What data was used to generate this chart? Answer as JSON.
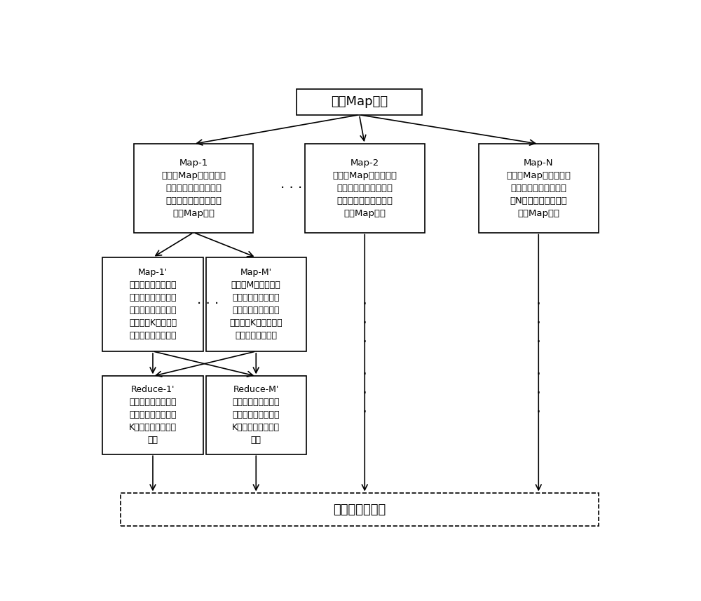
{
  "title": "启动Map任务",
  "map1_label": "Map-1\n获取该Map任务负责处\n理的待分类样本集中的\n第一部分样本，并启动\n新的Map任务",
  "map2_label": "Map-2\n获取该Map任务负责处\n理的待分类样本集中的\n第二部分样本，并启动\n新的Map任务",
  "mapn_label": "Map-N\n获取该Map任务负责处\n理的待分类样本集中的\n第N部分样本，并启动\n新的Map任务",
  "map1p_label": "Map-1'\n获取第一部分训练样\n本，并根据其对待分\n类样本集中的第一部\n分样本求K个最近邻\n相似度所对应的类别",
  "mapmp_label": "Map-M'\n获取第M部分训练样\n本，并根据其对待分\n类样本集中的第一部\n分样本求K个最近邻相\n似度所对应的类别",
  "reduce1p_label": "Reduce-1'\n统计第一部分待分类\n样本中的每个样本的\nK个类别中占多数的\n类别",
  "reducemp_label": "Reduce-M'\n统计第一部分待分类\n样本中的每个样本的\nK个类别中占多数的\n类别",
  "bottom_label": "分布式文件系统",
  "bg_color": "#ffffff",
  "box_edge": "#000000",
  "text_color": "#000000"
}
